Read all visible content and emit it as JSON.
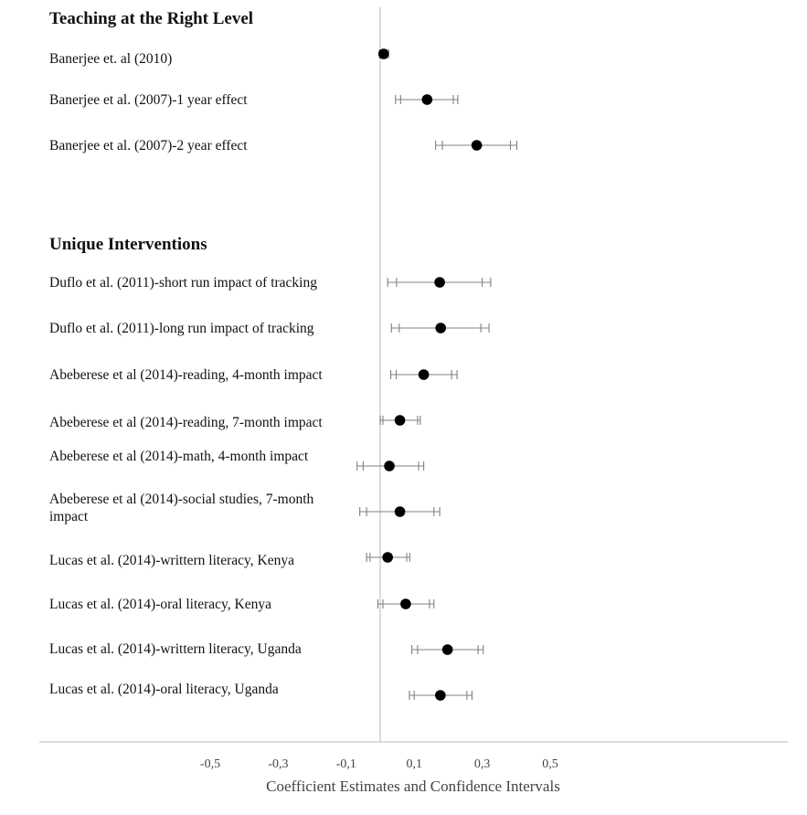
{
  "chart_data": {
    "type": "scatter",
    "subtype": "forest-plot",
    "xlabel": "Coefficient Estimates and Confidence Intervals",
    "xlim": [
      -0.5,
      0.6
    ],
    "xticks": [
      -0.5,
      -0.3,
      -0.1,
      0.1,
      0.3,
      0.5
    ],
    "xtick_labels": [
      "-0,5",
      "-0,3",
      "-0,1",
      "0,1",
      "0,3",
      "0,5"
    ],
    "reference_line": 0,
    "grid": false,
    "legend": "none",
    "groups": [
      {
        "title": "Teaching at the Right Level",
        "rows": [
          {
            "label": [
              "Banerjee  et. al (2010)"
            ],
            "estimate": 0.01,
            "ci_inner": [
              0.0,
              0.02
            ],
            "ci_outer": [
              -0.002,
              0.025
            ]
          },
          {
            "label": [
              "Banerjee  et al. (2007)-1  year effect"
            ],
            "estimate": 0.138,
            "ci_inner": [
              0.06,
              0.215
            ],
            "ci_outer": [
              0.045,
              0.228
            ]
          },
          {
            "label": [
              "Banerjee  et al. (2007)-2  year effect"
            ],
            "estimate": 0.284,
            "ci_inner": [
              0.183,
              0.383
            ],
            "ci_outer": [
              0.163,
              0.402
            ]
          }
        ]
      },
      {
        "title": "Unique Interventions",
        "rows": [
          {
            "label": [
              "Duflo et al. (2011)-short run impact of tracking"
            ],
            "estimate": 0.175,
            "ci_inner": [
              0.048,
              0.3
            ],
            "ci_outer": [
              0.022,
              0.325
            ]
          },
          {
            "label": [
              "Duflo et al. (2011)-long run impact of tracking"
            ],
            "estimate": 0.178,
            "ci_inner": [
              0.056,
              0.296
            ],
            "ci_outer": [
              0.033,
              0.32
            ]
          },
          {
            "label": [
              "Abeberese et al (2014)-reading,  4-month impact"
            ],
            "estimate": 0.128,
            "ci_inner": [
              0.047,
              0.21
            ],
            "ci_outer": [
              0.031,
              0.226
            ]
          },
          {
            "label": [
              "Abeberese et al (2014)-reading,  7-month impact"
            ],
            "estimate": 0.058,
            "ci_inner": [
              0.008,
              0.11
            ],
            "ci_outer": [
              0.0,
              0.118
            ]
          },
          {
            "label": [
              "Abeberese et al (2014)-math,  4-month impact"
            ],
            "estimate": 0.027,
            "ci_inner": [
              -0.05,
              0.113
            ],
            "ci_outer": [
              -0.068,
              0.128
            ]
          },
          {
            "label": [
              "Abeberese et al (2014)-social studies, 7-month",
              "impact"
            ],
            "estimate": 0.058,
            "ci_inner": [
              -0.04,
              0.158
            ],
            "ci_outer": [
              -0.06,
              0.175
            ]
          },
          {
            "label": [
              "Lucas et al. (2014)-writtern  literacy, Kenya"
            ],
            "estimate": 0.022,
            "ci_inner": [
              -0.03,
              0.078
            ],
            "ci_outer": [
              -0.04,
              0.087
            ]
          },
          {
            "label": [
              "Lucas et al. (2014)-oral literacy, Kenya"
            ],
            "estimate": 0.075,
            "ci_inner": [
              0.008,
              0.145
            ],
            "ci_outer": [
              -0.007,
              0.158
            ]
          },
          {
            "label": [
              "Lucas et al. (2014)-writtern  literacy, Uganda"
            ],
            "estimate": 0.198,
            "ci_inner": [
              0.11,
              0.288
            ],
            "ci_outer": [
              0.093,
              0.303
            ]
          },
          {
            "label": [
              "Lucas et al. (2014)-oral literacy, Uganda"
            ],
            "estimate": 0.177,
            "ci_inner": [
              0.1,
              0.255
            ],
            "ci_outer": [
              0.086,
              0.27
            ]
          }
        ]
      }
    ]
  }
}
